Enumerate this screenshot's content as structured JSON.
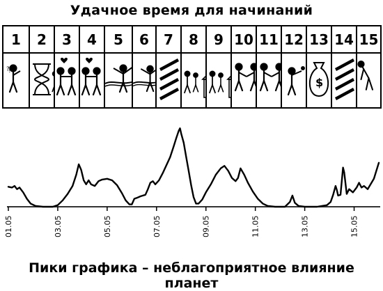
{
  "header": {
    "title": "Удачное время для начинаний"
  },
  "days": [
    {
      "num": "1",
      "icon": "person-pondering-icon"
    },
    {
      "num": "2",
      "icon": "hourglass-icon"
    },
    {
      "num": "3",
      "icon": "couple-with-heart-icon"
    },
    {
      "num": "4",
      "icon": "couple-with-heart-icon"
    },
    {
      "num": "5",
      "icon": "runner-finish-ribbon-icon"
    },
    {
      "num": "6",
      "icon": "runner-finish-ribbon-icon"
    },
    {
      "num": "7",
      "icon": "hatched-bars-icon"
    },
    {
      "num": "8",
      "icon": "family-house-icon"
    },
    {
      "num": "9",
      "icon": "family-house-icon"
    },
    {
      "num": "10",
      "icon": "handshake-icon"
    },
    {
      "num": "11",
      "icon": "handshake-icon"
    },
    {
      "num": "12",
      "icon": "person-money-bag-icon"
    },
    {
      "num": "13",
      "icon": "money-bag-icon"
    },
    {
      "num": "14",
      "icon": "hatched-bars-icon"
    },
    {
      "num": "15",
      "icon": "person-bowing-icon"
    }
  ],
  "chart_data": {
    "type": "line",
    "x_ticks": [
      "01.05",
      "03.05",
      "05.05",
      "07.05",
      "09.05",
      "11.05",
      "13.05",
      "15.05"
    ],
    "x_range_days": [
      1,
      16
    ],
    "y_range": [
      0,
      1
    ],
    "baseline": 0,
    "series": [
      {
        "values": [
          [
            1.0,
            0.25
          ],
          [
            1.15,
            0.24
          ],
          [
            1.25,
            0.26
          ],
          [
            1.35,
            0.22
          ],
          [
            1.45,
            0.24
          ],
          [
            1.6,
            0.18
          ],
          [
            1.75,
            0.1
          ],
          [
            1.9,
            0.04
          ],
          [
            2.1,
            0.01
          ],
          [
            2.4,
            0.0
          ],
          [
            2.8,
            0.0
          ],
          [
            3.0,
            0.02
          ],
          [
            3.2,
            0.08
          ],
          [
            3.4,
            0.16
          ],
          [
            3.6,
            0.26
          ],
          [
            3.75,
            0.4
          ],
          [
            3.85,
            0.53
          ],
          [
            3.95,
            0.46
          ],
          [
            4.05,
            0.33
          ],
          [
            4.15,
            0.28
          ],
          [
            4.25,
            0.33
          ],
          [
            4.35,
            0.28
          ],
          [
            4.5,
            0.26
          ],
          [
            4.65,
            0.32
          ],
          [
            4.8,
            0.34
          ],
          [
            5.0,
            0.35
          ],
          [
            5.2,
            0.33
          ],
          [
            5.4,
            0.27
          ],
          [
            5.6,
            0.17
          ],
          [
            5.75,
            0.08
          ],
          [
            5.9,
            0.03
          ],
          [
            6.0,
            0.03
          ],
          [
            6.1,
            0.1
          ],
          [
            6.2,
            0.11
          ],
          [
            6.35,
            0.13
          ],
          [
            6.45,
            0.14
          ],
          [
            6.55,
            0.15
          ],
          [
            6.65,
            0.22
          ],
          [
            6.75,
            0.3
          ],
          [
            6.85,
            0.32
          ],
          [
            6.95,
            0.28
          ],
          [
            7.1,
            0.33
          ],
          [
            7.25,
            0.42
          ],
          [
            7.4,
            0.52
          ],
          [
            7.55,
            0.62
          ],
          [
            7.7,
            0.76
          ],
          [
            7.8,
            0.86
          ],
          [
            7.9,
            0.95
          ],
          [
            7.95,
            0.98
          ],
          [
            8.0,
            0.91
          ],
          [
            8.1,
            0.8
          ],
          [
            8.2,
            0.62
          ],
          [
            8.3,
            0.45
          ],
          [
            8.4,
            0.27
          ],
          [
            8.5,
            0.12
          ],
          [
            8.6,
            0.04
          ],
          [
            8.7,
            0.04
          ],
          [
            8.85,
            0.09
          ],
          [
            9.0,
            0.18
          ],
          [
            9.2,
            0.28
          ],
          [
            9.4,
            0.4
          ],
          [
            9.6,
            0.48
          ],
          [
            9.75,
            0.51
          ],
          [
            9.9,
            0.45
          ],
          [
            10.05,
            0.36
          ],
          [
            10.2,
            0.32
          ],
          [
            10.3,
            0.36
          ],
          [
            10.4,
            0.48
          ],
          [
            10.55,
            0.4
          ],
          [
            10.7,
            0.3
          ],
          [
            10.9,
            0.19
          ],
          [
            11.1,
            0.1
          ],
          [
            11.3,
            0.04
          ],
          [
            11.5,
            0.01
          ],
          [
            11.8,
            0.0
          ],
          [
            12.2,
            0.0
          ],
          [
            12.4,
            0.06
          ],
          [
            12.5,
            0.14
          ],
          [
            12.6,
            0.05
          ],
          [
            12.75,
            0.01
          ],
          [
            13.0,
            0.0
          ],
          [
            13.5,
            0.0
          ],
          [
            13.9,
            0.02
          ],
          [
            14.05,
            0.06
          ],
          [
            14.15,
            0.15
          ],
          [
            14.25,
            0.26
          ],
          [
            14.3,
            0.21
          ],
          [
            14.35,
            0.14
          ],
          [
            14.45,
            0.15
          ],
          [
            14.55,
            0.49
          ],
          [
            14.6,
            0.43
          ],
          [
            14.7,
            0.16
          ],
          [
            14.8,
            0.22
          ],
          [
            14.95,
            0.18
          ],
          [
            15.1,
            0.24
          ],
          [
            15.2,
            0.3
          ],
          [
            15.3,
            0.24
          ],
          [
            15.4,
            0.26
          ],
          [
            15.55,
            0.22
          ],
          [
            15.8,
            0.35
          ],
          [
            16.0,
            0.55
          ]
        ]
      }
    ]
  },
  "footer": {
    "caption": "Пики графика – неблагоприятное влияние планет"
  }
}
